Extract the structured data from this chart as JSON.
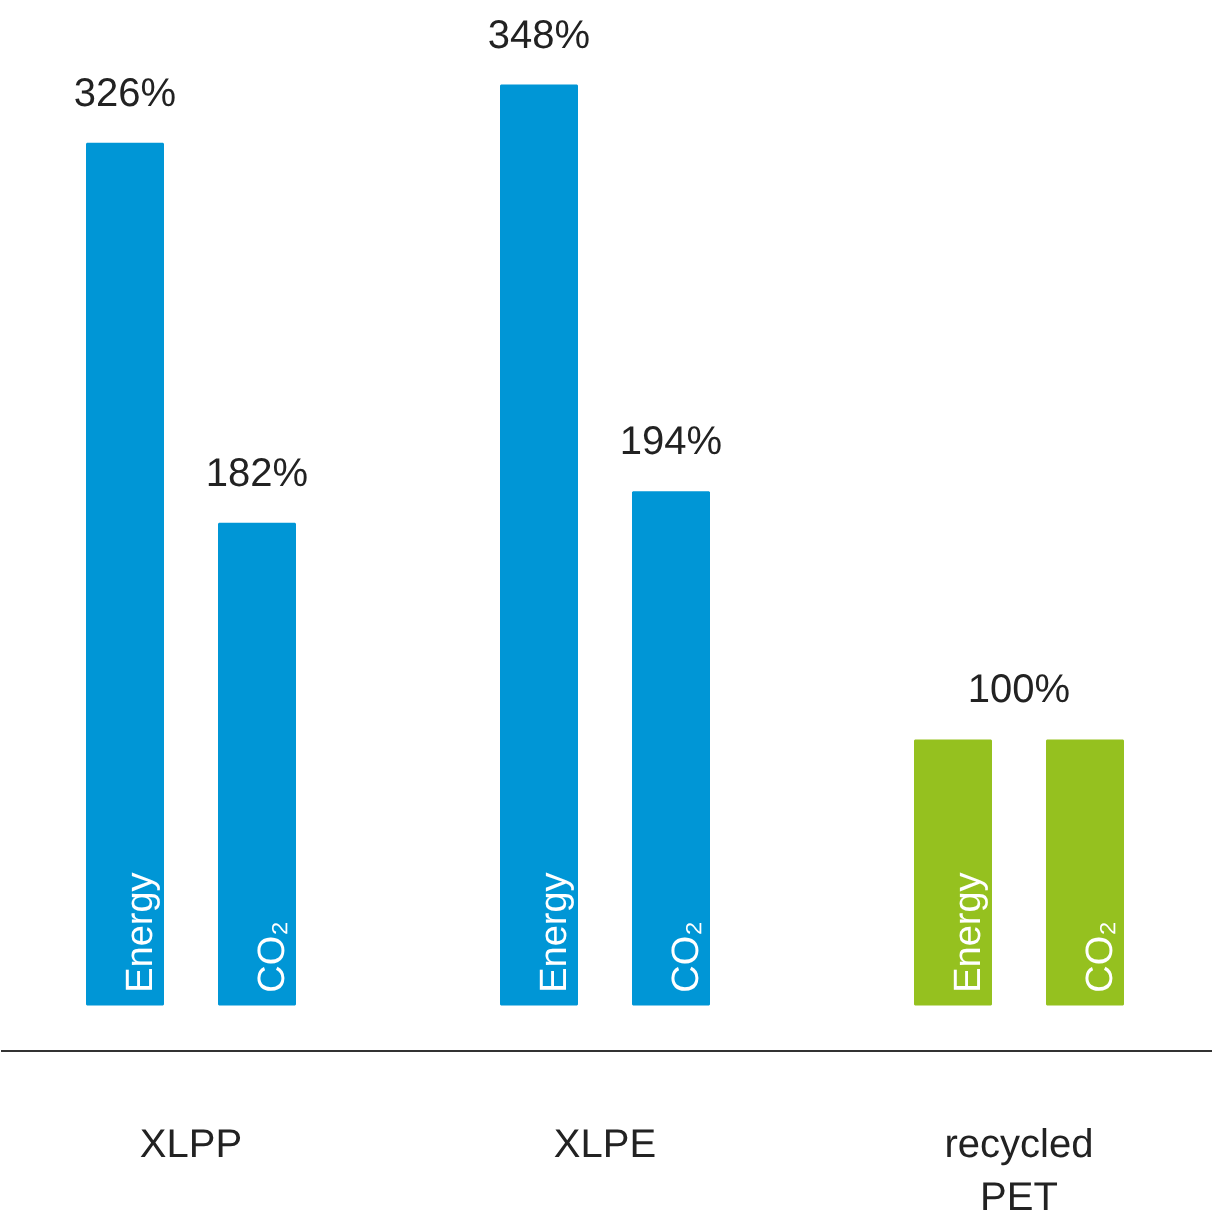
{
  "chart_data": {
    "type": "bar",
    "categories": [
      "XLPP",
      "XLPE",
      "recycled PET"
    ],
    "series": [
      {
        "name": "Energy",
        "colors": [
          "#0096d6",
          "#0096d6",
          "#95c11f"
        ],
        "values": [
          326,
          348,
          100
        ],
        "value_labels": [
          "326%",
          "348%",
          null
        ]
      },
      {
        "name": "CO₂",
        "colors": [
          "#0096d6",
          "#0096d6",
          "#95c11f"
        ],
        "values": [
          182,
          194,
          100
        ],
        "value_labels": [
          "182%",
          "194%",
          null
        ]
      }
    ],
    "annotations": [
      "100%"
    ],
    "grid": false
  }
}
